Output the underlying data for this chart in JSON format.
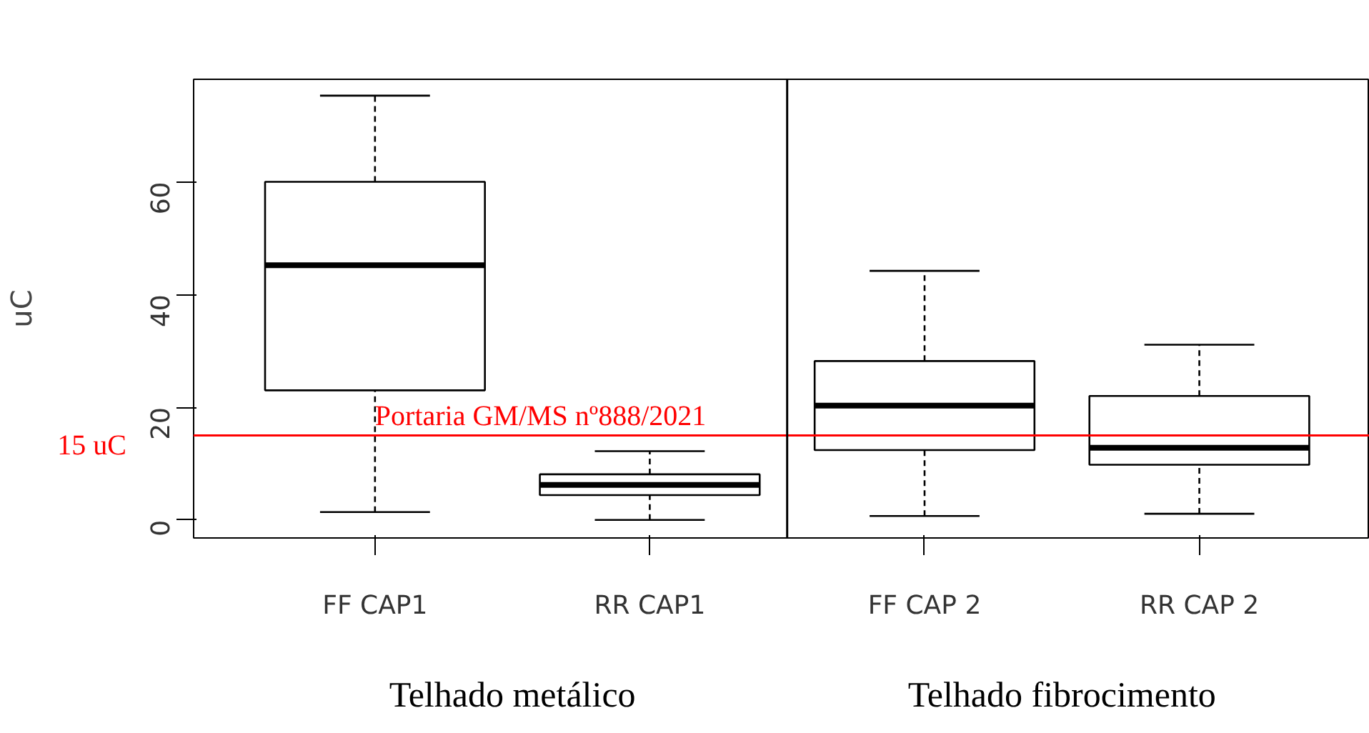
{
  "chart_data": {
    "type": "box",
    "ylabel": "uC",
    "categories": [
      "FF CAP1",
      "RR CAP1",
      "FF CAP 2",
      "RR CAP 2"
    ],
    "boxes": [
      {
        "low": 1.4,
        "q1": 23,
        "median": 45.2,
        "q3": 60,
        "high": 75.3
      },
      {
        "low": 0,
        "q1": 4.4,
        "median": 6.2,
        "q3": 8.1,
        "high": 12.2
      },
      {
        "low": 0.7,
        "q1": 12.4,
        "median": 20.3,
        "q3": 28.2,
        "high": 44.2
      },
      {
        "low": 1.1,
        "q1": 9.8,
        "median": 12.8,
        "q3": 22,
        "high": 31.1
      }
    ],
    "ylim": [
      -3.2,
      78.2
    ],
    "yticks": [
      0,
      20,
      40,
      60
    ],
    "grid": false,
    "ref_lines": [
      {
        "axis": "y",
        "value": 15,
        "label": "Portaria GM/MS nº888/2021",
        "color": "#ff0000"
      }
    ],
    "annotations": [
      "15 uC",
      "Telhado metálico",
      "Telhado fibrocimento"
    ]
  }
}
